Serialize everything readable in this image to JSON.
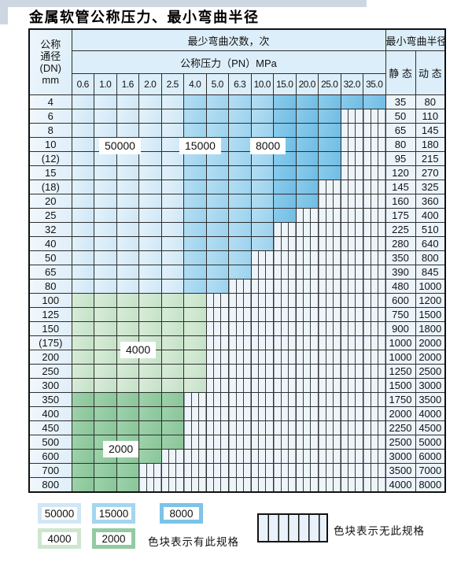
{
  "title": "金属软管公称压力、最小弯曲半径",
  "table": {
    "dn_header": "公称\n通径\n(DN)\nmm",
    "bend_count_header": "最少弯曲次数，次",
    "pressure_header": "公称压力（PN）MPa",
    "radius_header": "最小弯曲半径",
    "static_label": "静 态",
    "dynamic_label": "动 态",
    "pressures": [
      "0.6",
      "1.0",
      "1.6",
      "2.0",
      "2.5",
      "4.0",
      "5.0",
      "6.3",
      "10.0",
      "15.0",
      "20.0",
      "25.0",
      "32.0",
      "35.0"
    ],
    "rows": [
      {
        "dn": "4",
        "zone": "blue",
        "colored": 14,
        "static": "35",
        "dynamic": "80"
      },
      {
        "dn": "6",
        "zone": "blue",
        "colored": 12,
        "static": "50",
        "dynamic": "110"
      },
      {
        "dn": "8",
        "zone": "blue",
        "colored": 12,
        "static": "65",
        "dynamic": "145"
      },
      {
        "dn": "10",
        "zone": "blue",
        "colored": 12,
        "static": "80",
        "dynamic": "180"
      },
      {
        "dn": "(12)",
        "zone": "blue",
        "colored": 12,
        "static": "95",
        "dynamic": "215"
      },
      {
        "dn": "15",
        "zone": "blue",
        "colored": 12,
        "static": "120",
        "dynamic": "270"
      },
      {
        "dn": "(18)",
        "zone": "blue",
        "colored": 11,
        "static": "145",
        "dynamic": "325"
      },
      {
        "dn": "20",
        "zone": "blue",
        "colored": 11,
        "static": "160",
        "dynamic": "360"
      },
      {
        "dn": "25",
        "zone": "blue",
        "colored": 10,
        "static": "175",
        "dynamic": "400"
      },
      {
        "dn": "32",
        "zone": "blue",
        "colored": 9,
        "static": "225",
        "dynamic": "510"
      },
      {
        "dn": "40",
        "zone": "blue",
        "colored": 9,
        "static": "280",
        "dynamic": "640"
      },
      {
        "dn": "50",
        "zone": "blue",
        "colored": 8,
        "static": "350",
        "dynamic": "800"
      },
      {
        "dn": "65",
        "zone": "blue",
        "colored": 8,
        "static": "390",
        "dynamic": "845"
      },
      {
        "dn": "80",
        "zone": "blue",
        "colored": 7,
        "static": "480",
        "dynamic": "1000"
      },
      {
        "dn": "100",
        "zone": "g4",
        "colored": 6,
        "static": "600",
        "dynamic": "1200"
      },
      {
        "dn": "125",
        "zone": "g4",
        "colored": 6,
        "static": "750",
        "dynamic": "1500"
      },
      {
        "dn": "150",
        "zone": "g4",
        "colored": 6,
        "static": "900",
        "dynamic": "1800"
      },
      {
        "dn": "(175)",
        "zone": "g4",
        "colored": 6,
        "static": "1000",
        "dynamic": "2000"
      },
      {
        "dn": "200",
        "zone": "g4",
        "colored": 6,
        "static": "1000",
        "dynamic": "2000"
      },
      {
        "dn": "250",
        "zone": "g4",
        "colored": 6,
        "static": "1250",
        "dynamic": "2500"
      },
      {
        "dn": "300",
        "zone": "g4",
        "colored": 6,
        "static": "1500",
        "dynamic": "3000"
      },
      {
        "dn": "350",
        "zone": "g2",
        "colored": 5,
        "static": "1750",
        "dynamic": "3500"
      },
      {
        "dn": "400",
        "zone": "g2",
        "colored": 5,
        "static": "2000",
        "dynamic": "4000"
      },
      {
        "dn": "450",
        "zone": "g2",
        "colored": 5,
        "static": "2250",
        "dynamic": "4500"
      },
      {
        "dn": "500",
        "zone": "g2",
        "colored": 5,
        "static": "2500",
        "dynamic": "5000"
      },
      {
        "dn": "600",
        "zone": "g2",
        "colored": 4,
        "static": "3000",
        "dynamic": "6000"
      },
      {
        "dn": "700",
        "zone": "g2",
        "colored": 3,
        "static": "3500",
        "dynamic": "7000"
      },
      {
        "dn": "800",
        "zone": "g2",
        "colored": 3,
        "static": "4000",
        "dynamic": "8000"
      }
    ]
  },
  "region_labels": {
    "blue_50000": "50000",
    "blue_15000": "15000",
    "blue_8000": "8000",
    "green_4000": "4000",
    "green_2000": "2000"
  },
  "legend": {
    "items": [
      {
        "label": "50000",
        "color": "#cfe7f6"
      },
      {
        "label": "15000",
        "color": "#a3d6ef"
      },
      {
        "label": "8000",
        "color": "#7cc3e8"
      },
      {
        "label": "4000",
        "color": "#cee6cf"
      },
      {
        "label": "2000",
        "color": "#93cba1"
      }
    ],
    "available_text": "色块表示有此规格",
    "unavailable_text": "色块表示无此规格"
  },
  "colors": {
    "zone_50000": "#d8ecf9",
    "zone_15000": "#a6d8f0",
    "zone_8000": "#7cc3e8",
    "zone_4000": "#cee6cf",
    "zone_2000": "#93cba1",
    "hatch_background": "#edf5fb",
    "hatch_stripe": "#3f3f3f",
    "header_background": "#dceef9",
    "grid_line": "#2e2e2e"
  }
}
